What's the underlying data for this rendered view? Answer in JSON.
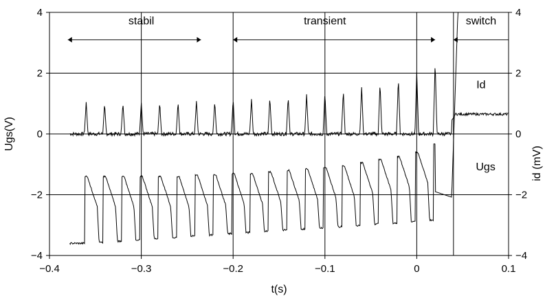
{
  "chart_data": {
    "type": "line",
    "xlabel": "t(s)",
    "ylabel_left": "Ugs(V)",
    "ylabel_right": "id (mV)",
    "xlim": [
      -0.4,
      0.1
    ],
    "ylim_left": [
      -4,
      4
    ],
    "ylim_right": [
      -4,
      4
    ],
    "x_ticks": [
      "−0.4",
      "−0.3",
      "−0.2",
      "−0.1",
      "0",
      "0.1"
    ],
    "y_ticks_left": [
      "4",
      "2",
      "0",
      "−2",
      "−4"
    ],
    "y_ticks_right": [
      "4",
      "2",
      "0",
      "−2",
      "−4"
    ],
    "grid": true,
    "gridlines_x": [
      -0.3,
      -0.2,
      -0.1,
      0,
      0.04
    ],
    "gridlines_y": [
      2,
      0,
      -2
    ],
    "annotations": [
      {
        "text": "stabil",
        "x": -0.3,
        "y": 3.6
      },
      {
        "text": "transient",
        "x": -0.1,
        "y": 3.6
      },
      {
        "text": "switch",
        "x": 0.07,
        "y": 3.6
      },
      {
        "text": "Id",
        "x": 0.07,
        "y": 1.5
      },
      {
        "text": "Ugs",
        "x": 0.075,
        "y": -1.2
      }
    ],
    "arrows": [
      {
        "from": -0.38,
        "to": -0.235,
        "y": 3.1
      },
      {
        "from": -0.2,
        "to": 0.02,
        "y": 3.1
      },
      {
        "from": 0.04,
        "to": 0.1,
        "y": 3.1
      }
    ],
    "series": [
      {
        "name": "Id",
        "pulse_start": -0.36,
        "pulse_period": 0.02,
        "pulse_width": 0.002,
        "baseline": 0,
        "peaks": [
          1.05,
          1.0,
          1.05,
          1.05,
          1.05,
          1.05,
          1.1,
          1.1,
          1.15,
          1.15,
          1.2,
          1.25,
          1.3,
          1.35,
          1.45,
          1.55,
          1.7,
          1.85,
          2.05,
          2.4,
          3.35
        ],
        "switch_at": 0.038,
        "after_switch_level": 0.65
      },
      {
        "name": "Ugs",
        "pulse_start": -0.36,
        "pulse_period": 0.02,
        "low_level_start": -3.6,
        "low_level_end": -2.8,
        "peaks": [
          -1.4,
          -1.4,
          -1.4,
          -1.4,
          -1.4,
          -1.4,
          -1.35,
          -1.35,
          -1.3,
          -1.3,
          -1.25,
          -1.2,
          -1.15,
          -1.1,
          -1.05,
          -0.95,
          -0.85,
          -0.75,
          -0.6,
          -0.35,
          0.2
        ],
        "switch_at": 0.038,
        "after_switch_level": 4
      }
    ]
  }
}
